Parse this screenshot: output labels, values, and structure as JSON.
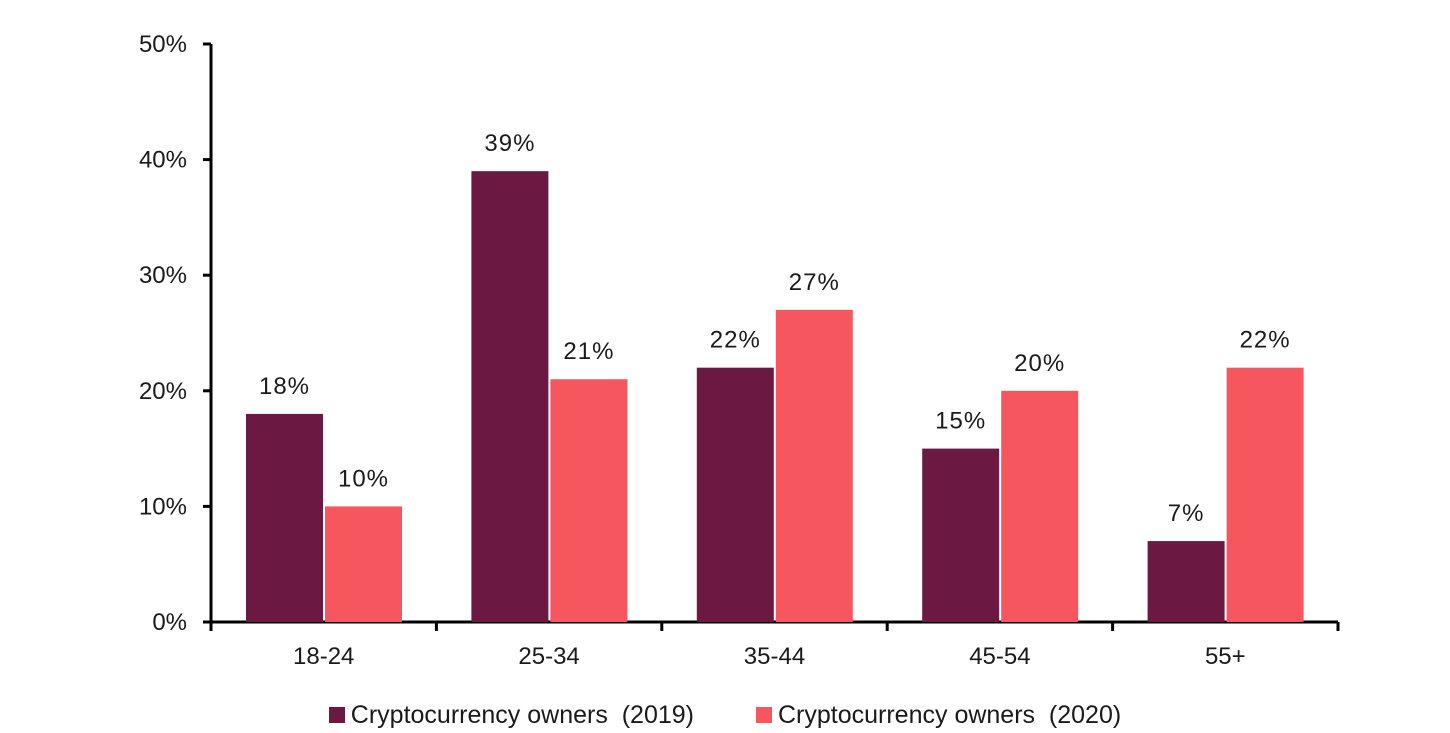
{
  "chart_data": {
    "type": "bar",
    "categories": [
      "18-24",
      "25-34",
      "35-44",
      "45-54",
      "55+"
    ],
    "series": [
      {
        "name": "Cryptocurrency owners  (2019)",
        "values": [
          18,
          39,
          22,
          15,
          7
        ],
        "labels": [
          "18%",
          "39%",
          "22%",
          "15%",
          "7%"
        ],
        "color": "#6b1942"
      },
      {
        "name": "Cryptocurrency owners  (2020)",
        "values": [
          10,
          21,
          27,
          20,
          22
        ],
        "labels": [
          "10%",
          "21%",
          "27%",
          "20%",
          "22%"
        ],
        "color": "#f6565d"
      }
    ],
    "ylim": [
      0,
      50
    ],
    "yticks": [
      0,
      10,
      20,
      30,
      40,
      50
    ],
    "ytick_labels": [
      "0%",
      "10%",
      "20%",
      "30%",
      "40%",
      "50%"
    ],
    "xlabel": "",
    "ylabel": "",
    "title": "",
    "grid": false,
    "legend_position": "bottom-center"
  }
}
